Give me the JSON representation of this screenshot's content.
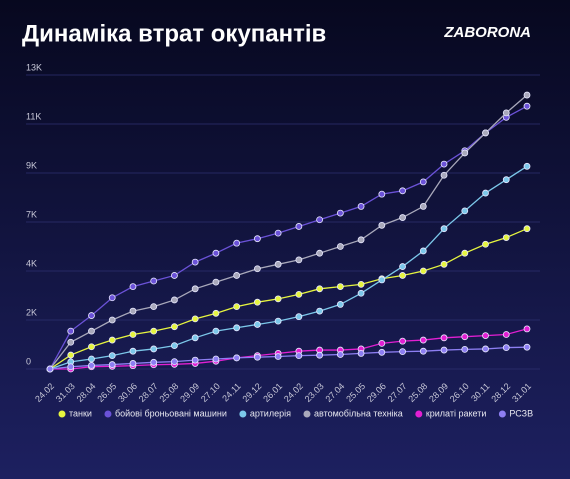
{
  "header": {
    "title": "Динаміка втрат окупантів",
    "logo": "ZABORONA"
  },
  "chart_data": {
    "type": "line",
    "grid": true,
    "legend": "bottom",
    "categories": [
      "24.02",
      "31.03",
      "28.04",
      "26.05",
      "30.06",
      "28.07",
      "25.08",
      "29.09",
      "27.10",
      "24.11",
      "29.12",
      "26.01",
      "24.02",
      "23.03",
      "27.04",
      "25.05",
      "29.06",
      "27.07",
      "25.08",
      "28.09",
      "26.10",
      "30.11",
      "28.12",
      "31.01"
    ],
    "ylim": [
      0,
      13200
    ],
    "yticks": [
      0,
      {
        "value": 2200,
        "label": "2K"
      },
      {
        "value": 4400,
        "label": "4K"
      },
      {
        "value": 6600,
        "label": "7K"
      },
      {
        "value": 8800,
        "label": "9K"
      },
      {
        "value": 11000,
        "label": "11K"
      },
      {
        "value": 13200,
        "label": "13K"
      }
    ],
    "series": [
      {
        "name": "танки",
        "color": "#e6f53f",
        "values": [
          0,
          625,
          1000,
          1300,
          1550,
          1700,
          1900,
          2250,
          2500,
          2800,
          3000,
          3150,
          3350,
          3600,
          3700,
          3800,
          4050,
          4200,
          4400,
          4700,
          5200,
          5600,
          5900,
          6300
        ]
      },
      {
        "name": "бойові броньовані машини",
        "color": "#6b52d8",
        "values": [
          0,
          1700,
          2400,
          3200,
          3700,
          3950,
          4200,
          4800,
          5200,
          5650,
          5850,
          6100,
          6400,
          6700,
          7000,
          7300,
          7850,
          8000,
          8400,
          9200,
          9800,
          10600,
          11300,
          11800
        ]
      },
      {
        "name": "артилерія",
        "color": "#7cc8ea",
        "values": [
          0,
          320,
          450,
          600,
          800,
          900,
          1050,
          1400,
          1700,
          1850,
          2000,
          2150,
          2350,
          2600,
          2900,
          3400,
          4000,
          4600,
          5300,
          6300,
          7100,
          7900,
          8500,
          9100
        ]
      },
      {
        "name": "автомобільна техніка",
        "color": "#a9a9bb",
        "values": [
          0,
          1200,
          1700,
          2200,
          2600,
          2800,
          3100,
          3600,
          3900,
          4200,
          4500,
          4700,
          4900,
          5200,
          5500,
          5800,
          6450,
          6800,
          7300,
          8700,
          9700,
          10600,
          11500,
          12300
        ]
      },
      {
        "name": "крилаті ракети",
        "color": "#e21fd2",
        "values": [
          0,
          0,
          100,
          120,
          150,
          190,
          210,
          250,
          350,
          500,
          600,
          700,
          800,
          850,
          850,
          900,
          1150,
          1250,
          1300,
          1400,
          1450,
          1500,
          1550,
          1800
        ]
      },
      {
        "name": "РСЗВ",
        "color": "#8d7ef2",
        "values": [
          0,
          100,
          160,
          200,
          250,
          300,
          330,
          400,
          450,
          500,
          530,
          560,
          600,
          620,
          650,
          700,
          750,
          780,
          800,
          850,
          880,
          900,
          960,
          980
        ]
      }
    ]
  }
}
